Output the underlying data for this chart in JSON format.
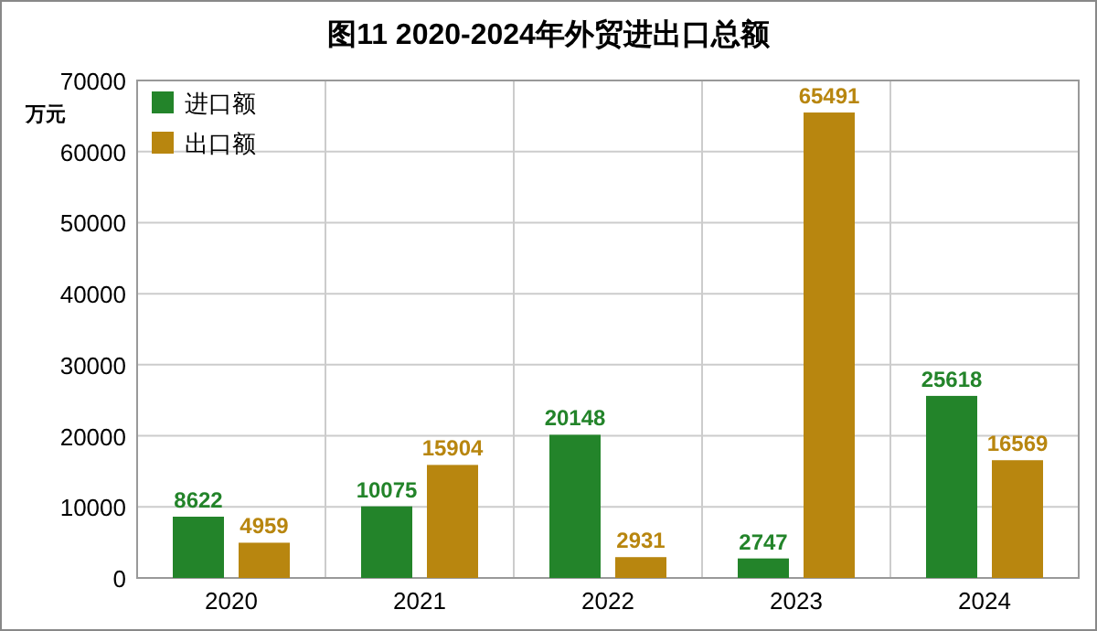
{
  "chart_data": {
    "type": "bar",
    "title": "图11 2020-2024年外贸进出口总额",
    "ylabel": "万元",
    "categories": [
      "2020",
      "2021",
      "2022",
      "2023",
      "2024"
    ],
    "series": [
      {
        "name": "进口额",
        "color": "#23842a",
        "values": [
          8622,
          10075,
          20148,
          2747,
          25618
        ]
      },
      {
        "name": "出口额",
        "color": "#b8860f",
        "values": [
          4959,
          15904,
          2931,
          65491,
          16569
        ]
      }
    ],
    "ylim": [
      0,
      70000
    ],
    "yticks": [
      0,
      10000,
      20000,
      30000,
      40000,
      50000,
      60000,
      70000
    ],
    "grid": true,
    "legend": "top left",
    "data_labels": true
  }
}
